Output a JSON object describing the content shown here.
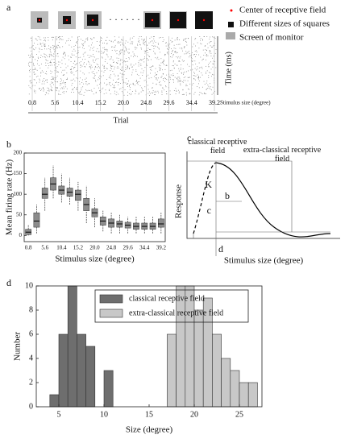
{
  "chart_data": [
    {
      "type": "raster",
      "panel": "a",
      "categories": [
        "0.8",
        "5.6",
        "10.4",
        "15.2",
        "20.0",
        "24.8",
        "29.6",
        "34.4",
        "39.2"
      ],
      "xlabel": "Trial",
      "xlabel2": "Stimulus size (degree)",
      "ylabel": "Time (ms)",
      "legend": [
        "Center of receptive field",
        "Different sizes of squares",
        "Screen of monitor"
      ]
    },
    {
      "type": "box",
      "panel": "b",
      "ylabel": "Mean firing rate (Hz)",
      "xlabel": "Stimulus size (degree)",
      "categories": [
        "0.8",
        null,
        "5.6",
        null,
        "10.4",
        null,
        "15.2",
        null,
        "20.0",
        null,
        "24.8",
        null,
        "29.6",
        null,
        "34.4",
        null,
        "39.2"
      ],
      "ylim": [
        -15,
        200
      ],
      "yticks": [
        0,
        50,
        100,
        150,
        200
      ],
      "color": "#8c8c8c",
      "boxes": [
        {
          "min": 0,
          "q1": 2,
          "median": 8,
          "q3": 15,
          "max": 25
        },
        {
          "min": 5,
          "q1": 20,
          "median": 35,
          "q3": 55,
          "max": 75
        },
        {
          "min": 60,
          "q1": 90,
          "median": 100,
          "q3": 115,
          "max": 140
        },
        {
          "min": 90,
          "q1": 110,
          "median": 125,
          "q3": 140,
          "max": 170
        },
        {
          "min": 80,
          "q1": 100,
          "median": 110,
          "q3": 120,
          "max": 150
        },
        {
          "min": 75,
          "q1": 95,
          "median": 105,
          "q3": 115,
          "max": 140
        },
        {
          "min": 60,
          "q1": 85,
          "median": 100,
          "q3": 110,
          "max": 130
        },
        {
          "min": 30,
          "q1": 60,
          "median": 75,
          "q3": 90,
          "max": 120
        },
        {
          "min": 20,
          "q1": 45,
          "median": 55,
          "q3": 65,
          "max": 90
        },
        {
          "min": 10,
          "q1": 25,
          "median": 35,
          "q3": 45,
          "max": 60
        },
        {
          "min": 5,
          "q1": 20,
          "median": 30,
          "q3": 40,
          "max": 55
        },
        {
          "min": 5,
          "q1": 20,
          "median": 28,
          "q3": 35,
          "max": 50
        },
        {
          "min": 5,
          "q1": 18,
          "median": 25,
          "q3": 32,
          "max": 45
        },
        {
          "min": 5,
          "q1": 15,
          "median": 22,
          "q3": 30,
          "max": 45
        },
        {
          "min": 5,
          "q1": 15,
          "median": 22,
          "q3": 30,
          "max": 45
        },
        {
          "min": 5,
          "q1": 15,
          "median": 22,
          "q3": 30,
          "max": 45
        },
        {
          "min": 5,
          "q1": 20,
          "median": 28,
          "q3": 40,
          "max": 55
        }
      ]
    },
    {
      "type": "schematic",
      "panel": "c",
      "ylabel": "Response",
      "xlabel": "Stimulus size (degree)",
      "labels": [
        "classical receptive field",
        "extra-classical receptive field",
        "K",
        "b",
        "c",
        "d"
      ]
    },
    {
      "type": "histogram",
      "panel": "d",
      "xlabel": "Size (degree)",
      "ylabel": "Number",
      "xlim": [
        2.5,
        27.5
      ],
      "ylim": [
        0,
        10
      ],
      "xticks": [
        5,
        10,
        15,
        20,
        25
      ],
      "yticks": [
        0,
        2,
        4,
        6,
        8,
        10
      ],
      "series": [
        {
          "name": "classical receptive field",
          "color": "#6e6e6e",
          "bins": [
            4,
            5,
            6,
            7,
            8,
            9,
            10,
            11
          ],
          "values": [
            1,
            6,
            10,
            6,
            5,
            0,
            3
          ]
        },
        {
          "name": "extra-classical receptive field",
          "color": "#c8c8c8",
          "bins": [
            17,
            18,
            19,
            20,
            21,
            22,
            23,
            24,
            25,
            26,
            27
          ],
          "values": [
            6,
            10,
            10,
            8,
            9,
            6,
            4,
            3,
            2,
            2
          ]
        }
      ]
    }
  ]
}
